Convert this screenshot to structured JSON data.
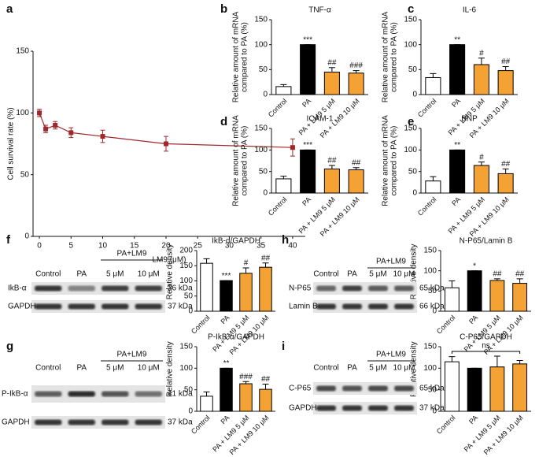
{
  "chart_data": [
    {
      "type": "line",
      "panel": "a",
      "xlabel": "LM9 (μM)",
      "ylabel": "Cell survival rate (%)",
      "x": [
        0,
        1,
        2.5,
        5,
        10,
        20,
        40
      ],
      "series": [
        {
          "color": "#a0282a",
          "values": [
            100,
            87,
            90,
            84,
            81,
            75,
            72
          ],
          "errors": [
            3,
            3,
            3,
            4,
            5,
            6,
            7
          ]
        }
      ],
      "xlim": [
        -1,
        42
      ],
      "xticks": [
        0,
        5,
        10,
        15,
        20,
        25,
        30,
        35,
        40
      ],
      "ylim": [
        0,
        150
      ],
      "yticks": [
        0,
        50,
        100,
        150
      ]
    },
    {
      "type": "bar",
      "panel": "b",
      "title": "TNF-α",
      "ylabel": [
        "Relative amount of mRNA",
        "compared to PA (%)"
      ],
      "categories": [
        "Control",
        "PA",
        "PA + LM9 5 μM",
        "PA + LM9 10 μM"
      ],
      "values": [
        16,
        100,
        45,
        43
      ],
      "errors": [
        4,
        0,
        9,
        5
      ],
      "colors": [
        "#ffffff",
        "#000000",
        "#f5a235",
        "#f5a235"
      ],
      "annotations": [
        null,
        "***",
        "##",
        "###"
      ],
      "ylim": [
        0,
        150
      ],
      "yticks": [
        0,
        50,
        100,
        150
      ]
    },
    {
      "type": "bar",
      "panel": "c",
      "title": "IL-6",
      "ylabel": [
        "Relative amount of mRNA",
        "compared to PA (%)"
      ],
      "categories": [
        "Control",
        "PA",
        "PA + LM9 5 μM",
        "PA + LM9 10 μM"
      ],
      "values": [
        34,
        100,
        60,
        48
      ],
      "errors": [
        8,
        0,
        13,
        8
      ],
      "colors": [
        "#ffffff",
        "#000000",
        "#f5a235",
        "#f5a235"
      ],
      "annotations": [
        null,
        "**",
        "#",
        "##"
      ],
      "ylim": [
        0,
        150
      ],
      "yticks": [
        0,
        50,
        100,
        150
      ]
    },
    {
      "type": "bar",
      "panel": "d",
      "title": "ICAM-1",
      "ylabel": [
        "Relative amount of mRNA",
        "compared to PA (%)"
      ],
      "categories": [
        "Control",
        "PA",
        "PA + LM9 5 μM",
        "PA + LM9 10 μM"
      ],
      "values": [
        33,
        100,
        56,
        54
      ],
      "errors": [
        6,
        0,
        8,
        5
      ],
      "colors": [
        "#ffffff",
        "#000000",
        "#f5a235",
        "#f5a235"
      ],
      "annotations": [
        null,
        "***",
        "##",
        "##"
      ],
      "ylim": [
        0,
        150
      ],
      "yticks": [
        0,
        50,
        100,
        150
      ]
    },
    {
      "type": "bar",
      "panel": "e",
      "title": "BNP",
      "ylabel": [
        "Relative amount of mRNA",
        "compared to PA (%)"
      ],
      "categories": [
        "Control",
        "PA",
        "PA + LM9 5 μM",
        "PA + LM9 10 μM"
      ],
      "values": [
        28,
        100,
        64,
        45
      ],
      "errors": [
        10,
        0,
        8,
        11
      ],
      "colors": [
        "#ffffff",
        "#000000",
        "#f5a235",
        "#f5a235"
      ],
      "annotations": [
        null,
        "**",
        "#",
        "##"
      ],
      "ylim": [
        0,
        150
      ],
      "yticks": [
        0,
        50,
        100,
        150
      ]
    },
    {
      "type": "bar",
      "panel": "f",
      "title": "IkB-α/GAPDH",
      "ylabel": [
        "Relative density"
      ],
      "categories": [
        "Control",
        "PA",
        "PA + LM9 5 μM",
        "PA + LM9 10 μM"
      ],
      "values": [
        158,
        101,
        125,
        145
      ],
      "errors": [
        15,
        0,
        18,
        14
      ],
      "colors": [
        "#ffffff",
        "#000000",
        "#f5a235",
        "#f5a235"
      ],
      "annotations": [
        null,
        "***",
        "#",
        "##"
      ],
      "ylim": [
        0,
        200
      ],
      "yticks": [
        0,
        50,
        100,
        150,
        200
      ]
    },
    {
      "type": "bar",
      "panel": "g",
      "title": "P-IkB-α/GAPDH",
      "ylabel": [
        "Relative density"
      ],
      "categories": [
        "Control",
        "PA",
        "PA + LM9 5 μM",
        "PA + LM9 10 μM"
      ],
      "values": [
        35,
        100,
        64,
        51
      ],
      "errors": [
        10,
        0,
        5,
        12
      ],
      "colors": [
        "#ffffff",
        "#000000",
        "#f5a235",
        "#f5a235"
      ],
      "annotations": [
        null,
        "**",
        "###",
        "##"
      ],
      "ylim": [
        0,
        150
      ],
      "yticks": [
        0,
        50,
        100,
        150
      ]
    },
    {
      "type": "bar",
      "panel": "h",
      "title": "N-P65/Lamin B",
      "ylabel": [
        "Relative density"
      ],
      "categories": [
        "Control",
        "PA",
        "PA + LM9 5 μM",
        "PA + LM9 10 μM"
      ],
      "values": [
        58,
        100,
        76,
        69
      ],
      "errors": [
        17,
        0,
        4,
        11
      ],
      "colors": [
        "#ffffff",
        "#000000",
        "#f5a235",
        "#f5a235"
      ],
      "annotations": [
        null,
        "*",
        "##",
        "##"
      ],
      "ylim": [
        0,
        150
      ],
      "yticks": [
        0,
        50,
        100,
        150
      ]
    },
    {
      "type": "bar",
      "panel": "i",
      "title": "C-P65/GAPDH",
      "ylabel": [
        "Relative density"
      ],
      "categories": [
        "Control",
        "PA",
        "PA + LM9 5 μM",
        "PA + LM9 10 μM"
      ],
      "values": [
        115,
        100,
        103,
        110
      ],
      "errors": [
        12,
        0,
        25,
        8
      ],
      "colors": [
        "#ffffff",
        "#000000",
        "#f5a235",
        "#f5a235"
      ],
      "bracket_label": "ns",
      "ylim": [
        0,
        150
      ],
      "yticks": [
        0,
        50,
        100,
        150
      ]
    }
  ],
  "blots": [
    {
      "panel": "f",
      "lanes": [
        "Control",
        "PA",
        "5 μM",
        "10 μM"
      ],
      "group": "PA+LM9",
      "rows": [
        {
          "label": "IkB-α",
          "size": "36 kDa"
        },
        {
          "label": "GAPDH",
          "size": "37 kDa"
        }
      ]
    },
    {
      "panel": "g",
      "lanes": [
        "Control",
        "PA",
        "5 μM",
        "10 μM"
      ],
      "group": "PA+LM9",
      "rows": [
        {
          "label": "P-IkB-α",
          "size": "41 kDa"
        },
        {
          "label": "GAPDH",
          "size": "37 kDa"
        }
      ]
    },
    {
      "panel": "h",
      "lanes": [
        "Control",
        "PA",
        "5 μM",
        "10 μM"
      ],
      "group": "PA+LM9",
      "rows": [
        {
          "label": "N-P65",
          "size": "65 kDa"
        },
        {
          "label": "Lamin B",
          "size": "66 kDa"
        }
      ]
    },
    {
      "panel": "i",
      "lanes": [
        "Control",
        "PA",
        "5 μM",
        "10 μM"
      ],
      "group": "PA+LM9",
      "rows": [
        {
          "label": "C-P65",
          "size": "65 kDa"
        },
        {
          "label": "GAPDH",
          "size": "37 kDa"
        }
      ]
    }
  ]
}
